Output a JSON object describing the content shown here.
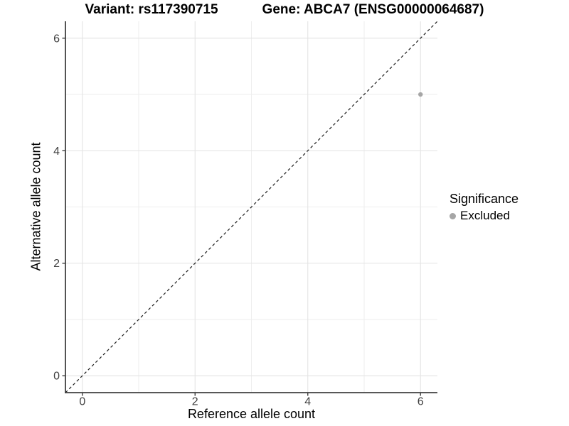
{
  "header": {
    "title_variant": "Variant: rs117390715",
    "title_gene": "Gene: ABCA7 (ENSG00000064687)"
  },
  "chart_data": {
    "type": "scatter",
    "title": "Variant: rs117390715   Gene: ABCA7 (ENSG00000064687)",
    "xlabel": "Reference allele count",
    "ylabel": "Alternative allele count",
    "xlim": [
      -0.3,
      6.3
    ],
    "ylim": [
      -0.3,
      6.3
    ],
    "x_ticks": [
      0,
      2,
      4,
      6
    ],
    "y_ticks": [
      0,
      2,
      4,
      6
    ],
    "minor_gridlines": [
      1,
      3,
      5
    ],
    "grid": "major+minor",
    "legend_position": "right",
    "points": [
      {
        "x": 6,
        "y": 5,
        "series": "Excluded"
      }
    ],
    "series": [
      {
        "name": "Excluded",
        "color": "#a6a6a6"
      }
    ],
    "reference_line": {
      "slope": 1,
      "intercept": 0,
      "linetype": "dashed",
      "color": "#1a1a1a"
    },
    "legend": {
      "title": "Significance",
      "entries": [
        {
          "label": "Excluded",
          "color": "#a6a6a6",
          "marker": "circle"
        }
      ]
    }
  },
  "colors": {
    "background": "#ffffff",
    "grid_major": "#e4e4e4",
    "grid_minor": "#eeeeee",
    "axis_line": "#404040",
    "tick_mark": "#404040",
    "tick_label": "#404040",
    "point": "#a6a6a6",
    "dashed_line": "#1a1a1a"
  }
}
